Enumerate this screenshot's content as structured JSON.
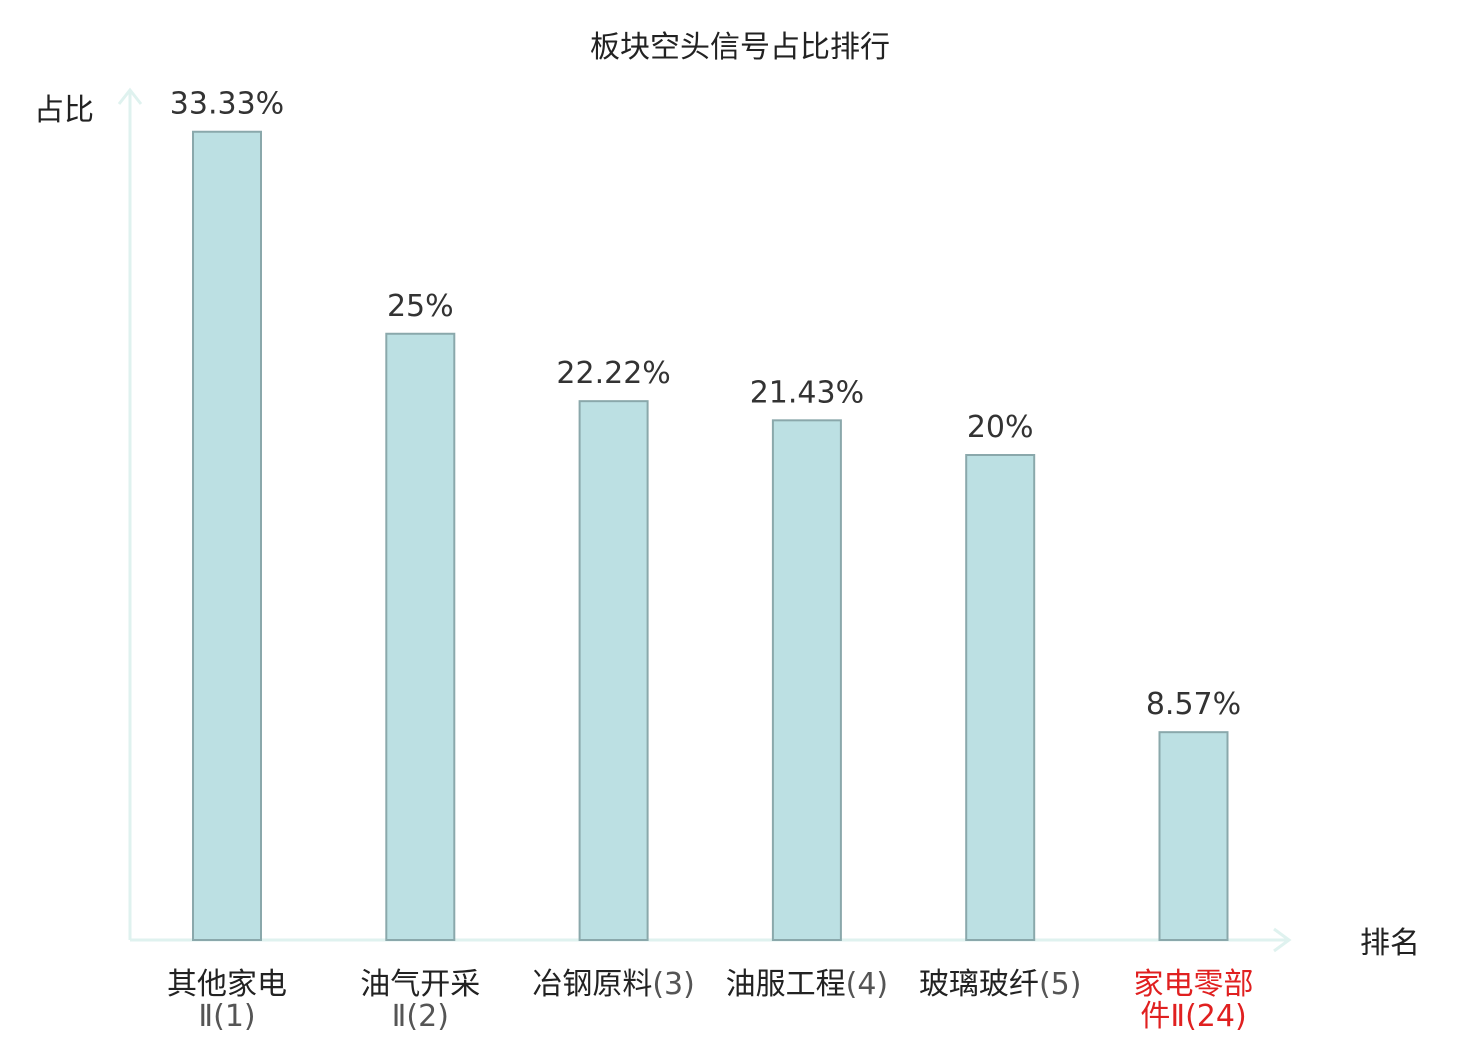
{
  "chart_data": {
    "type": "bar",
    "title": "板块空头信号占比排行",
    "ylabel": "占比",
    "xlabel": "排名",
    "ylim": [
      0,
      35
    ],
    "grid": false,
    "categories": [
      {
        "name": "其他家电",
        "rank": "Ⅱ(1)",
        "highlight": false
      },
      {
        "name": "油气开采",
        "rank": "Ⅱ(2)",
        "highlight": false
      },
      {
        "name": "冶钢原料",
        "rank": "(3)",
        "highlight": false
      },
      {
        "name": "油服工程",
        "rank": "(4)",
        "highlight": false
      },
      {
        "name": "玻璃玻纤",
        "rank": "(5)",
        "highlight": false
      },
      {
        "name": "家电零部件",
        "rank": "Ⅱ(24)",
        "highlight": true
      }
    ],
    "values": [
      33.33,
      25,
      22.22,
      21.43,
      20,
      8.57
    ],
    "value_labels": [
      "33.33%",
      "25%",
      "22.22%",
      "21.43%",
      "20%",
      "8.57%"
    ]
  },
  "colors": {
    "bar_fill": "#bce0e3",
    "bar_stroke": "#8aa8ab",
    "axis": "#dff2ef",
    "text": "#222222",
    "value_text": "#333333",
    "rank_text": "#555555",
    "highlight": "#e02020"
  }
}
